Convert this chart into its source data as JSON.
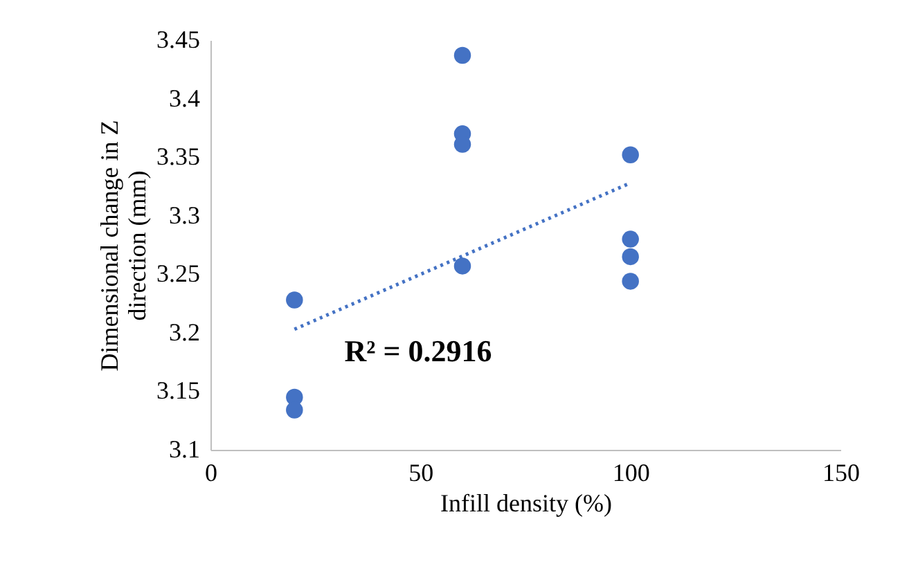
{
  "chart_data": {
    "type": "scatter",
    "xlabel": "Infill density (%)",
    "ylabel": "Dimensional change in Z direction (mm)",
    "series": [
      {
        "color": "#4472c4",
        "marker": "circle",
        "x": [
          20,
          20,
          20,
          60,
          60,
          60,
          60,
          100,
          100,
          100,
          100
        ],
        "values": [
          3.228,
          3.145,
          3.134,
          3.437,
          3.37,
          3.361,
          3.257,
          3.352,
          3.28,
          3.265,
          3.244
        ]
      },
      {
        "type": "line",
        "color": "#4472c4",
        "line_style": "dotted",
        "x": [
          20,
          100
        ],
        "values": [
          3.203,
          3.328
        ]
      }
    ],
    "xlim": [
      0,
      150
    ],
    "xticks": [
      0,
      50,
      100,
      150
    ],
    "ylim": [
      3.1,
      3.45
    ],
    "yticks": [
      3.1,
      3.15,
      3.2,
      3.25,
      3.3,
      3.35,
      3.4,
      3.45
    ],
    "grid": false,
    "annotations": [
      "R² = 0.2916"
    ]
  }
}
